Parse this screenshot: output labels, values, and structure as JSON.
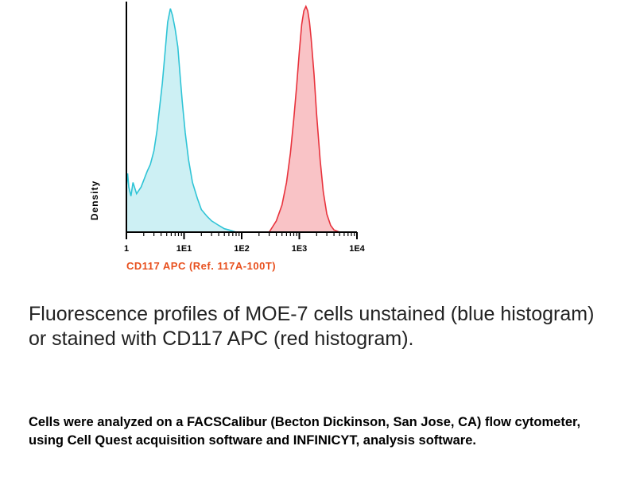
{
  "chart_data": {
    "type": "area",
    "title": "",
    "xlabel": "CD117 APC (Ref. 117A-100T)",
    "ylabel": "Density",
    "x_scale": "log",
    "xlim": [
      1,
      10000
    ],
    "ylim": [
      0,
      1
    ],
    "tick_labels": [
      "1",
      "1E1",
      "1E2",
      "1E3",
      "1E4"
    ],
    "tick_values": [
      1,
      10,
      100,
      1000,
      10000
    ],
    "series": [
      {
        "name": "unstained (blue histogram)",
        "color": "#2fc4d6",
        "fill": "#cdf0f4",
        "x": [
          1,
          1.05,
          1.1,
          1.2,
          1.3,
          1.5,
          1.8,
          2.0,
          2.3,
          2.6,
          3.0,
          3.4,
          3.8,
          4.2,
          4.7,
          5.2,
          5.8,
          6.3,
          7.0,
          7.8,
          8.5,
          9.3,
          10.5,
          12,
          14,
          17,
          20,
          25,
          30,
          40,
          50,
          60,
          80
        ],
        "values": [
          0.2,
          0.26,
          0.2,
          0.16,
          0.22,
          0.17,
          0.2,
          0.23,
          0.27,
          0.3,
          0.36,
          0.45,
          0.56,
          0.66,
          0.8,
          0.93,
          0.99,
          0.96,
          0.9,
          0.82,
          0.7,
          0.58,
          0.44,
          0.32,
          0.22,
          0.15,
          0.1,
          0.07,
          0.05,
          0.03,
          0.015,
          0.01,
          0.0
        ]
      },
      {
        "name": "CD117 APC stained (red histogram)",
        "color": "#e8323c",
        "fill": "#f9c3c6",
        "x": [
          300,
          400,
          500,
          600,
          700,
          800,
          900,
          1000,
          1100,
          1200,
          1300,
          1400,
          1500,
          1600,
          1800,
          2000,
          2300,
          2600,
          3000,
          3500,
          4000,
          5000
        ],
        "values": [
          0.0,
          0.05,
          0.12,
          0.22,
          0.35,
          0.5,
          0.65,
          0.8,
          0.92,
          0.98,
          1.0,
          0.98,
          0.93,
          0.86,
          0.7,
          0.52,
          0.32,
          0.18,
          0.08,
          0.03,
          0.01,
          0.0
        ]
      }
    ]
  },
  "caption": "Fluorescence profiles of MOE-7 cells unstained (blue histogram) or stained with CD117 APC (red histogram).",
  "note": "Cells were analyzed on a FACSCalibur (Becton Dickinson, San Jose, CA)  flow cytometer, using Cell Quest acquisition software and INFINICYT, analysis software.",
  "colors": {
    "xlabel": "#e8501e",
    "axis": "#000000",
    "caption": "#222222"
  }
}
